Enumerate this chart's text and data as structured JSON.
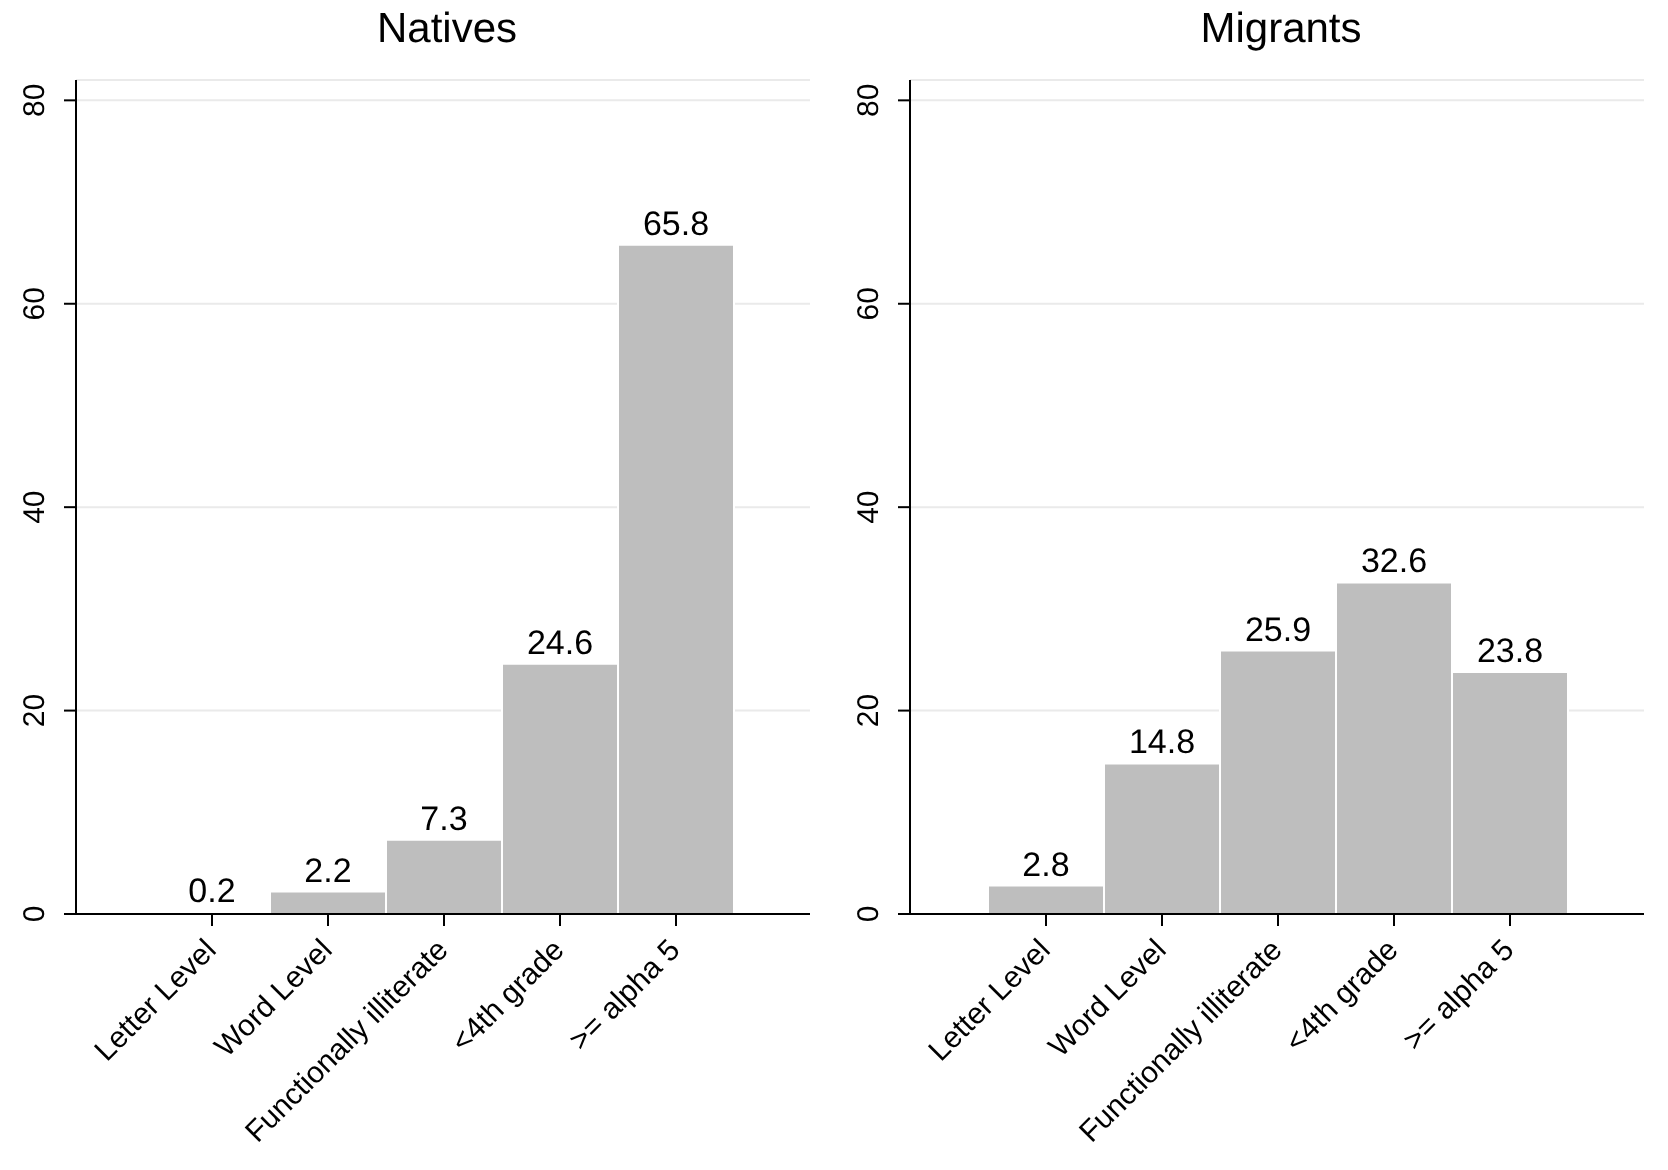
{
  "chart_data": [
    {
      "type": "bar",
      "title": "Natives",
      "categories": [
        "Letter Level",
        "Word Level",
        "Functionally illiterate",
        "<4th grade",
        ">= alpha 5"
      ],
      "values": [
        0.2,
        2.2,
        7.3,
        24.6,
        65.8
      ],
      "color": "#bebebe",
      "ylim": [
        0,
        82
      ],
      "yticks": [
        0,
        20,
        40,
        60,
        80
      ],
      "grid": "y",
      "data_labels": true
    },
    {
      "type": "bar",
      "title": "Migrants",
      "categories": [
        "Letter Level",
        "Word Level",
        "Functionally illiterate",
        "<4th grade",
        ">= alpha 5"
      ],
      "values": [
        2.8,
        14.8,
        25.9,
        32.6,
        23.8
      ],
      "color": "#bebebe",
      "ylim": [
        0,
        82
      ],
      "yticks": [
        0,
        20,
        40,
        60,
        80
      ],
      "grid": "y",
      "data_labels": true
    }
  ]
}
